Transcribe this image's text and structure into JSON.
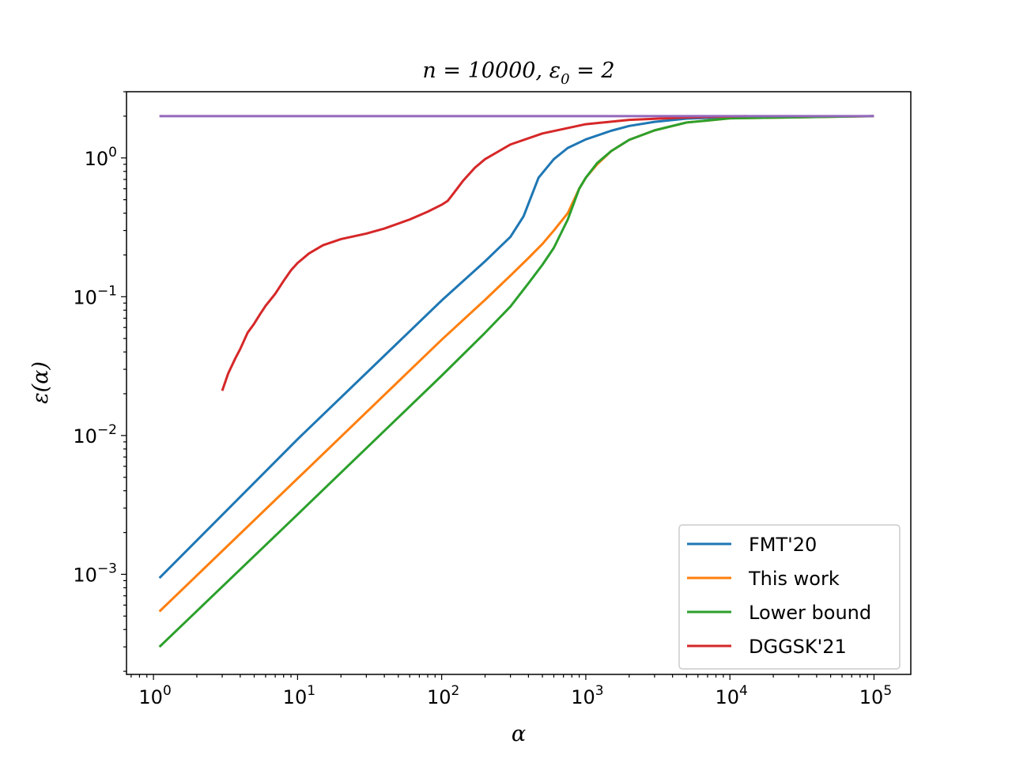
{
  "chart_data": {
    "type": "line",
    "title": {
      "base": "n = 10000, ε",
      "sub": "0",
      "tail": " = 2"
    },
    "xlabel": "α",
    "ylabel": "ε(α)",
    "xscale": "log",
    "yscale": "log",
    "xlim": [
      0.65,
      180000
    ],
    "ylim": [
      0.00019,
      3.0
    ],
    "xticks": [
      {
        "base": "10",
        "exp": "0",
        "value": 1
      },
      {
        "base": "10",
        "exp": "1",
        "value": 10
      },
      {
        "base": "10",
        "exp": "2",
        "value": 100
      },
      {
        "base": "10",
        "exp": "3",
        "value": 1000
      },
      {
        "base": "10",
        "exp": "4",
        "value": 10000
      },
      {
        "base": "10",
        "exp": "5",
        "value": 100000
      }
    ],
    "yticks": [
      {
        "base": "10",
        "exp": "−3",
        "value": 0.001
      },
      {
        "base": "10",
        "exp": "−2",
        "value": 0.01
      },
      {
        "base": "10",
        "exp": "−1",
        "value": 0.1
      },
      {
        "base": "10",
        "exp": "0",
        "value": 1
      }
    ],
    "grid": false,
    "legend": "lower-right",
    "series": [
      {
        "name": "FMT'20",
        "color": "#1f77b4",
        "in_legend": true,
        "points": [
          [
            1.1,
            0.00094
          ],
          [
            10,
            0.0094
          ],
          [
            50,
            0.047
          ],
          [
            100,
            0.094
          ],
          [
            200,
            0.18
          ],
          [
            300,
            0.27
          ],
          [
            370,
            0.38
          ],
          [
            470,
            0.72
          ],
          [
            600,
            0.98
          ],
          [
            750,
            1.18
          ],
          [
            1000,
            1.36
          ],
          [
            1500,
            1.57
          ],
          [
            2000,
            1.7
          ],
          [
            3000,
            1.82
          ],
          [
            5000,
            1.92
          ],
          [
            10000,
            1.97
          ],
          [
            100000,
            2.0
          ]
        ]
      },
      {
        "name": "This work",
        "color": "#ff7f0e",
        "in_legend": true,
        "points": [
          [
            1.1,
            0.00054
          ],
          [
            10,
            0.0049
          ],
          [
            100,
            0.049
          ],
          [
            200,
            0.095
          ],
          [
            300,
            0.142
          ],
          [
            400,
            0.19
          ],
          [
            500,
            0.24
          ],
          [
            600,
            0.3
          ],
          [
            750,
            0.4
          ],
          [
            900,
            0.6
          ],
          [
            1000,
            0.72
          ],
          [
            1200,
            0.9
          ],
          [
            1500,
            1.12
          ],
          [
            2000,
            1.35
          ],
          [
            3000,
            1.58
          ],
          [
            5000,
            1.8
          ],
          [
            10000,
            1.93
          ],
          [
            100000,
            2.0
          ]
        ]
      },
      {
        "name": "Lower bound",
        "color": "#2ca02c",
        "in_legend": true,
        "points": [
          [
            1.1,
            0.0003
          ],
          [
            10,
            0.0027
          ],
          [
            100,
            0.027
          ],
          [
            200,
            0.055
          ],
          [
            300,
            0.085
          ],
          [
            400,
            0.125
          ],
          [
            500,
            0.17
          ],
          [
            600,
            0.225
          ],
          [
            750,
            0.36
          ],
          [
            900,
            0.6
          ],
          [
            1000,
            0.72
          ],
          [
            1200,
            0.92
          ],
          [
            1500,
            1.12
          ],
          [
            2000,
            1.35
          ],
          [
            3000,
            1.58
          ],
          [
            5000,
            1.8
          ],
          [
            10000,
            1.93
          ],
          [
            100000,
            2.0
          ]
        ]
      },
      {
        "name": "DGGSK'21",
        "color": "#d62728",
        "in_legend": true,
        "points": [
          [
            3,
            0.021
          ],
          [
            3.3,
            0.028
          ],
          [
            3.7,
            0.036
          ],
          [
            4,
            0.042
          ],
          [
            4.5,
            0.055
          ],
          [
            5,
            0.064
          ],
          [
            5.5,
            0.075
          ],
          [
            6,
            0.086
          ],
          [
            7,
            0.105
          ],
          [
            8,
            0.13
          ],
          [
            9,
            0.155
          ],
          [
            10,
            0.175
          ],
          [
            12,
            0.205
          ],
          [
            15,
            0.235
          ],
          [
            20,
            0.26
          ],
          [
            30,
            0.285
          ],
          [
            40,
            0.31
          ],
          [
            60,
            0.36
          ],
          [
            80,
            0.41
          ],
          [
            100,
            0.46
          ],
          [
            110,
            0.49
          ],
          [
            120,
            0.55
          ],
          [
            140,
            0.68
          ],
          [
            170,
            0.85
          ],
          [
            200,
            0.98
          ],
          [
            300,
            1.25
          ],
          [
            500,
            1.5
          ],
          [
            1000,
            1.75
          ],
          [
            2000,
            1.88
          ],
          [
            5000,
            1.96
          ],
          [
            13000,
            2.0
          ]
        ]
      },
      {
        "name": "",
        "color": "#9467bd",
        "in_legend": false,
        "points": [
          [
            1.1,
            2.0
          ],
          [
            100000,
            2.0
          ]
        ]
      }
    ]
  }
}
